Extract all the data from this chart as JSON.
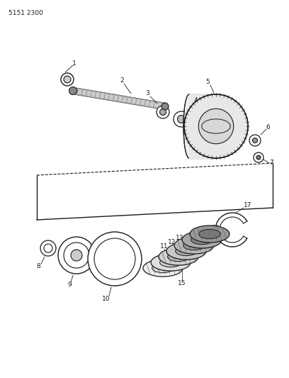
{
  "part_number": "5151 2300",
  "bg_color": "#ffffff",
  "line_color": "#1a1a1a",
  "fig_width": 4.08,
  "fig_height": 5.33,
  "dpi": 100
}
